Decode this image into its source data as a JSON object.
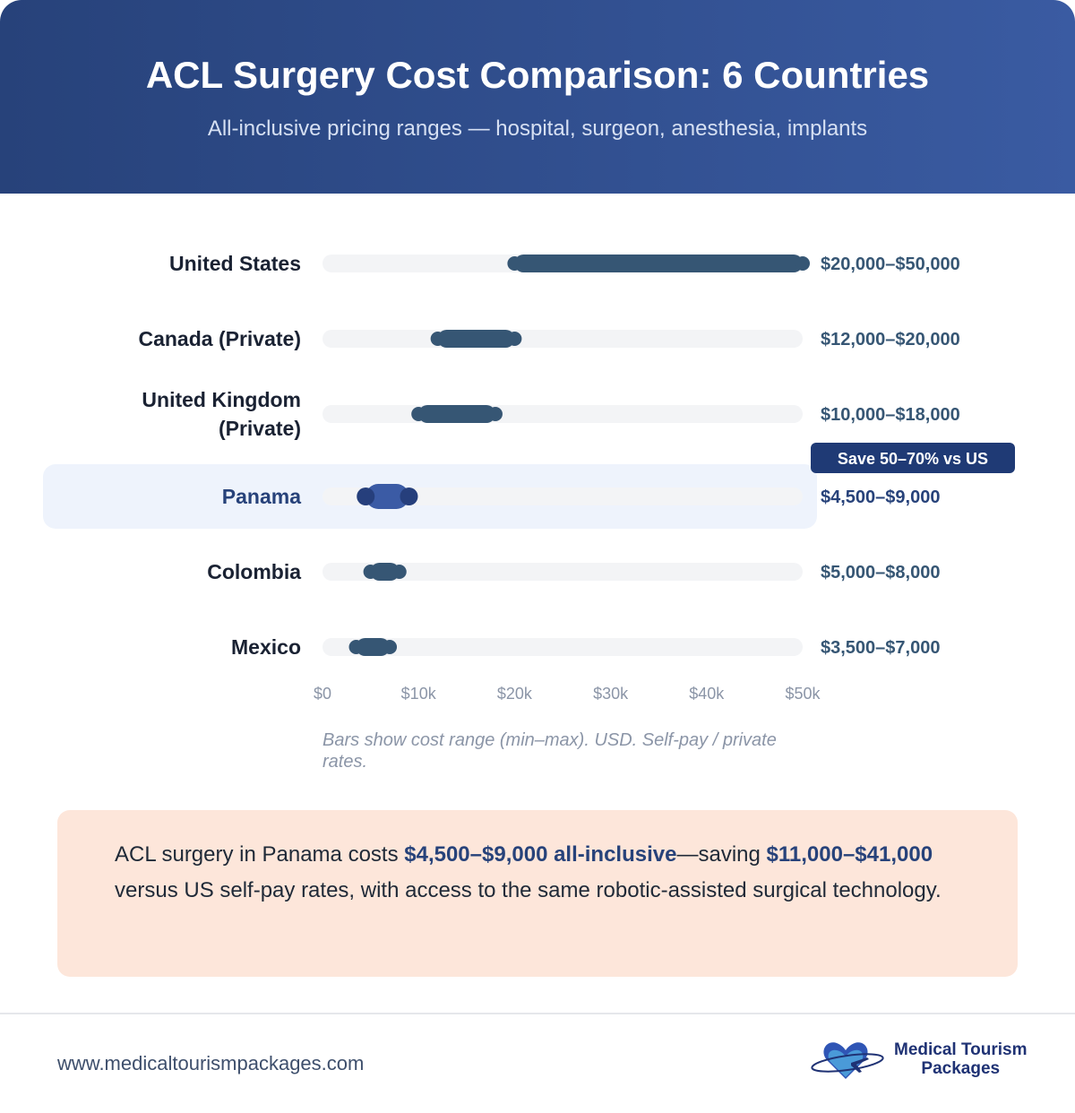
{
  "header": {
    "title": "ACL Surgery Cost Comparison: 6 Countries",
    "subtitle": "All-inclusive pricing ranges — hospital, surgeon, anesthesia, implants"
  },
  "chart_data": {
    "type": "bar",
    "subtype": "range",
    "categories": [
      "United States",
      "Canada (Private)",
      "United Kingdom (Private)",
      "Panama",
      "Colombia",
      "Mexico"
    ],
    "min": [
      20000,
      12000,
      10000,
      4500,
      5000,
      3500
    ],
    "max": [
      50000,
      20000,
      18000,
      9000,
      8000,
      7000
    ],
    "value_labels": [
      "$20,000–$50,000",
      "$12,000–$20,000",
      "$10,000–$18,000",
      "$4,500–$9,000",
      "$5,000–$8,000",
      "$3,500–$7,000"
    ],
    "highlight": "Panama",
    "highlight_badge": "Save 50–70% vs US",
    "xlim": [
      0,
      50000
    ],
    "x_ticks": [
      0,
      10000,
      20000,
      30000,
      40000,
      50000
    ],
    "x_tick_labels": [
      "$0",
      "$10k",
      "$20k",
      "$30k",
      "$40k",
      "$50k"
    ],
    "colors": {
      "bar": "#365674",
      "highlight_bar": "#3b5ba5",
      "highlight_dot": "#263f7c",
      "track": "#f3f4f6",
      "highlight_bg": "#eef3fc"
    }
  },
  "note": "Bars show cost range (min–max). USD. Self-pay / private rates.",
  "callout": {
    "t1": "ACL surgery in Panama costs ",
    "b1": "$4,500–$9,000 all-inclusive",
    "t2": "—saving ",
    "b2": "$11,000–$41,000",
    "t3": " versus US self-pay rates, with access to the same robotic-assisted surgical technology."
  },
  "footer": {
    "url": "www.medicaltourismpackages.com",
    "logo_line1": "Medical Tourism",
    "logo_line2": "Packages"
  }
}
